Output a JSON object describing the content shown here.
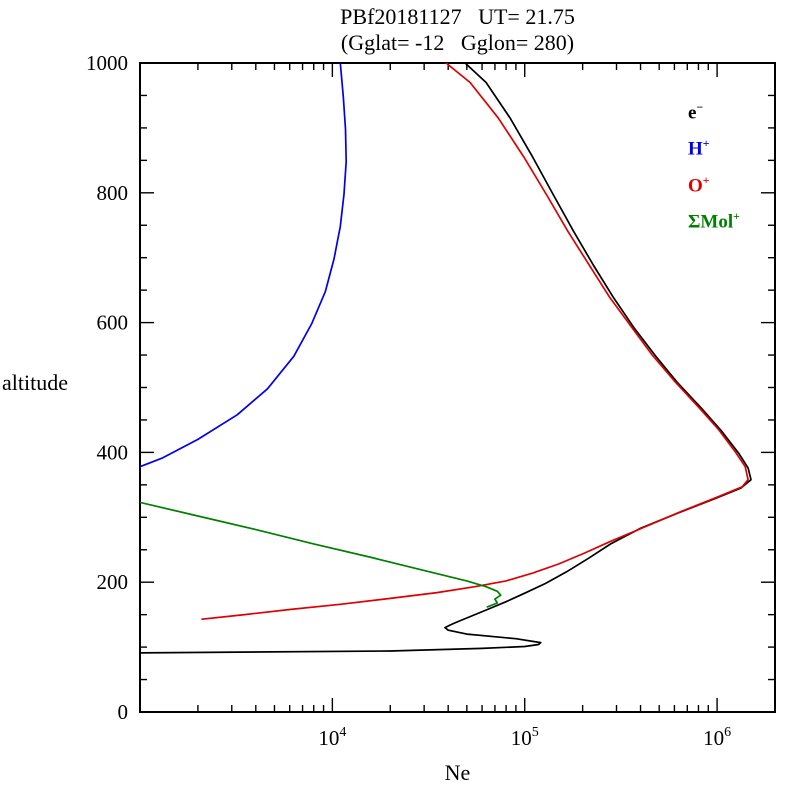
{
  "chart_data": {
    "type": "line",
    "title": "PBf20181127   UT= 21.75",
    "subtitle": "(Gglat= -12   Gglon= 280)",
    "xlabel": "Ne",
    "ylabel": "altitude",
    "x_scale": "log",
    "xlim": [
      1000,
      2000000
    ],
    "ylim": [
      0,
      1000
    ],
    "x_major_ticks": [
      10000,
      100000,
      1000000
    ],
    "y_major_ticks": [
      0,
      200,
      400,
      600,
      800,
      1000
    ],
    "y_minor_step": 50,
    "grid": false,
    "legend_position": "top-right",
    "legend": [
      {
        "base": "e",
        "sup": "−",
        "color": "#000000"
      },
      {
        "base": "H",
        "sup": "+",
        "color": "#0000ee"
      },
      {
        "base": "O",
        "sup": "+",
        "color": "#dd0000"
      },
      {
        "base": "ΣMol",
        "sup": "+",
        "color": "#007f00"
      }
    ],
    "series": [
      {
        "name": "e-",
        "color": "#000000",
        "points": [
          [
            1000,
            91
          ],
          [
            20000,
            94
          ],
          [
            60000,
            98
          ],
          [
            100000,
            101
          ],
          [
            118000,
            104
          ],
          [
            121000,
            107
          ],
          [
            90000,
            113
          ],
          [
            50000,
            120
          ],
          [
            40000,
            126
          ],
          [
            38500,
            130
          ],
          [
            41000,
            134
          ],
          [
            44000,
            138
          ],
          [
            52000,
            147
          ],
          [
            64000,
            158
          ],
          [
            80000,
            170
          ],
          [
            100000,
            183
          ],
          [
            128000,
            198
          ],
          [
            165000,
            216
          ],
          [
            215000,
            237
          ],
          [
            280000,
            259
          ],
          [
            400000,
            283
          ],
          [
            630000,
            307
          ],
          [
            980000,
            329
          ],
          [
            1330000,
            345
          ],
          [
            1500000,
            358
          ],
          [
            1450000,
            376
          ],
          [
            1300000,
            398
          ],
          [
            1060000,
            432
          ],
          [
            830000,
            468
          ],
          [
            620000,
            508
          ],
          [
            480000,
            548
          ],
          [
            370000,
            592
          ],
          [
            290000,
            638
          ],
          [
            228000,
            688
          ],
          [
            180000,
            740
          ],
          [
            142000,
            795
          ],
          [
            110000,
            855
          ],
          [
            84000,
            915
          ],
          [
            63000,
            970
          ],
          [
            49000,
            1000
          ]
        ]
      },
      {
        "name": "H+",
        "color": "#0000ee",
        "points": [
          [
            1000,
            378
          ],
          [
            1300,
            391
          ],
          [
            2000,
            420
          ],
          [
            3200,
            458
          ],
          [
            4600,
            498
          ],
          [
            6300,
            548
          ],
          [
            7800,
            598
          ],
          [
            9200,
            648
          ],
          [
            10200,
            698
          ],
          [
            11000,
            748
          ],
          [
            11500,
            798
          ],
          [
            11800,
            848
          ],
          [
            11700,
            898
          ],
          [
            11400,
            948
          ],
          [
            11000,
            1000
          ]
        ]
      },
      {
        "name": "O+",
        "color": "#dd0000",
        "points": [
          [
            2100,
            143
          ],
          [
            3500,
            150
          ],
          [
            6000,
            158
          ],
          [
            11000,
            166
          ],
          [
            20000,
            175
          ],
          [
            35000,
            184
          ],
          [
            55000,
            193
          ],
          [
            80000,
            202
          ],
          [
            110000,
            214
          ],
          [
            150000,
            228
          ],
          [
            205000,
            245
          ],
          [
            280000,
            263
          ],
          [
            420000,
            285
          ],
          [
            650000,
            309
          ],
          [
            1000000,
            331
          ],
          [
            1350000,
            347
          ],
          [
            1450000,
            358
          ],
          [
            1400000,
            378
          ],
          [
            1250000,
            400
          ],
          [
            1020000,
            435
          ],
          [
            800000,
            470
          ],
          [
            600000,
            510
          ],
          [
            460000,
            550
          ],
          [
            355000,
            595
          ],
          [
            275000,
            640
          ],
          [
            215000,
            690
          ],
          [
            168000,
            740
          ],
          [
            131000,
            795
          ],
          [
            99000,
            855
          ],
          [
            73000,
            915
          ],
          [
            52000,
            970
          ],
          [
            39000,
            1000
          ]
        ]
      },
      {
        "name": "Mol+",
        "color": "#007f00",
        "points": [
          [
            1000,
            323
          ],
          [
            2000,
            302
          ],
          [
            4000,
            281
          ],
          [
            8000,
            259
          ],
          [
            16000,
            238
          ],
          [
            32000,
            216
          ],
          [
            50000,
            202
          ],
          [
            63000,
            193
          ],
          [
            72000,
            186
          ],
          [
            75000,
            180
          ],
          [
            70000,
            174
          ],
          [
            72000,
            168
          ],
          [
            64000,
            162
          ]
        ]
      }
    ]
  }
}
